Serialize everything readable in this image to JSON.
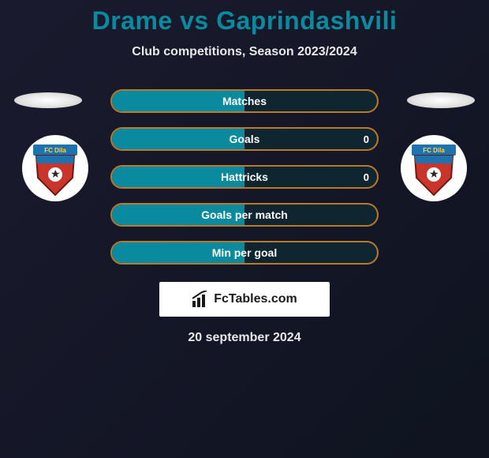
{
  "header": {
    "title": "Drame vs Gaprindashvili",
    "title_color": "#0a8a9e",
    "title_fontsize": 32,
    "subtitle": "Club competitions, Season 2023/2024",
    "subtitle_color": "#e8e8e8",
    "subtitle_fontsize": 16
  },
  "background": {
    "gradient_from": "#1a1a2e",
    "gradient_to": "#0f1420"
  },
  "crest_left": {
    "name": "FC Dila",
    "banner_color": "#c9342b",
    "band_color": "#1e73ae",
    "text_color": "#ffd24a"
  },
  "crest_right": {
    "name": "FC Dila",
    "banner_color": "#c9342b",
    "band_color": "#1e73ae",
    "text_color": "#ffd24a"
  },
  "stats": {
    "type": "bar",
    "bar_border_color": "#b87a2a",
    "left_fill_color": "#0a8a9e",
    "right_fill_color": "#9b5b1a",
    "bar_track_color": "#0f2530",
    "label_color": "#ffffff",
    "label_fontsize": 14,
    "rows": [
      {
        "label": "Matches",
        "left": null,
        "right": null,
        "left_pct": 50,
        "right_pct": 0
      },
      {
        "label": "Goals",
        "left": null,
        "right": 0,
        "left_pct": 50,
        "right_pct": 0
      },
      {
        "label": "Hattricks",
        "left": null,
        "right": 0,
        "left_pct": 50,
        "right_pct": 0
      },
      {
        "label": "Goals per match",
        "left": null,
        "right": null,
        "left_pct": 50,
        "right_pct": 0
      },
      {
        "label": "Min per goal",
        "left": null,
        "right": null,
        "left_pct": 50,
        "right_pct": 0
      }
    ]
  },
  "watermark": {
    "text": "FcTables.com",
    "background": "#ffffff",
    "text_color": "#1a1a1a",
    "fontsize": 16
  },
  "footer": {
    "date": "20 september 2024",
    "color": "#e8e8e8",
    "fontsize": 16
  }
}
